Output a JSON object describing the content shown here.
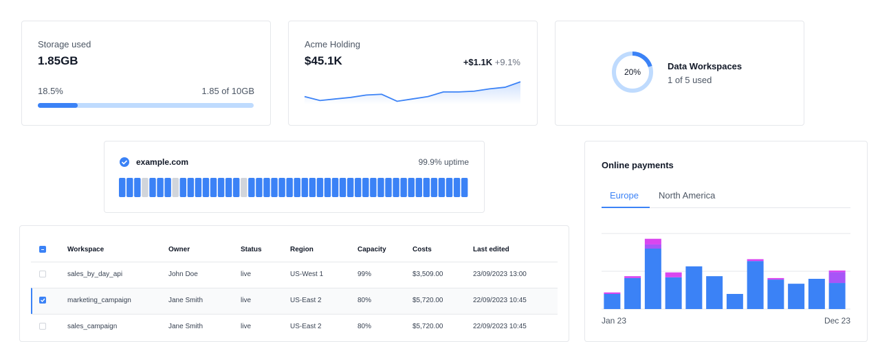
{
  "storage": {
    "title": "Storage used",
    "value": "1.85GB",
    "progress": 18.5,
    "progress_label": "18.5%",
    "detail": "1.85 of 10GB"
  },
  "holding": {
    "title": "Acme Holding",
    "value": "$45.1K",
    "change": "+$1.1K",
    "change_pct": "+9.1%",
    "sparkline": {
      "type": "line",
      "color": "#3b82f6",
      "values": [
        10,
        5,
        7,
        9,
        12,
        13,
        4,
        7,
        10,
        16,
        16,
        17,
        20,
        22,
        29
      ],
      "ylim": [
        0,
        30
      ]
    }
  },
  "workspaces": {
    "percent": 20,
    "percent_label": "20%",
    "title": "Data Workspaces",
    "detail": "1 of 5 used"
  },
  "uptime": {
    "domain": "example.com",
    "label": "99.9% uptime",
    "bars": [
      1,
      1,
      1,
      0,
      1,
      1,
      1,
      0,
      1,
      1,
      1,
      1,
      1,
      1,
      1,
      1,
      0,
      1,
      1,
      1,
      1,
      1,
      1,
      1,
      1,
      1,
      1,
      1,
      1,
      1,
      1,
      1,
      1,
      1,
      1,
      1,
      1,
      1,
      1,
      1,
      1,
      1,
      1,
      1,
      1,
      1
    ]
  },
  "table": {
    "header": [
      "Workspace",
      "Owner",
      "Status",
      "Region",
      "Capacity",
      "Costs",
      "Last edited"
    ],
    "rows": [
      [
        "sales_by_day_api",
        "John Doe",
        "live",
        "US-West 1",
        "99%",
        "$3,509.00",
        "23/09/2023 13:00"
      ],
      [
        "marketing_campaign",
        "Jane Smith",
        "live",
        "US-East 2",
        "80%",
        "$5,720.00",
        "22/09/2023 10:45"
      ],
      [
        "sales_campaign",
        "Jane Smith",
        "live",
        "US-East 2",
        "80%",
        "$5,720.00",
        "22/09/2023 10:45"
      ]
    ],
    "selected": [
      false,
      true,
      false
    ]
  },
  "payments": {
    "title": "Online payments",
    "tabs": [
      "Europe",
      "North America"
    ],
    "active_tab": 0,
    "chart_data": {
      "type": "bar",
      "stacked": true,
      "categories": [
        "Jan 23",
        null,
        null,
        null,
        null,
        null,
        null,
        null,
        null,
        null,
        null,
        "Dec 23"
      ],
      "series": [
        {
          "color": "#3b82f6",
          "values": [
            40,
            82,
            160,
            84,
            113,
            87,
            40,
            127,
            78,
            67,
            80,
            69
          ]
        },
        {
          "color": "#a855f7",
          "values": [
            0,
            0,
            11,
            0,
            0,
            0,
            0,
            0,
            0,
            0,
            0,
            29
          ]
        },
        {
          "color": "#d946ef",
          "values": [
            4,
            5,
            15,
            13,
            0,
            0,
            0,
            5,
            4,
            0,
            0,
            4
          ]
        }
      ],
      "ylim": [
        0,
        200
      ],
      "yticks": [
        0,
        100,
        200
      ],
      "grid": true
    }
  }
}
